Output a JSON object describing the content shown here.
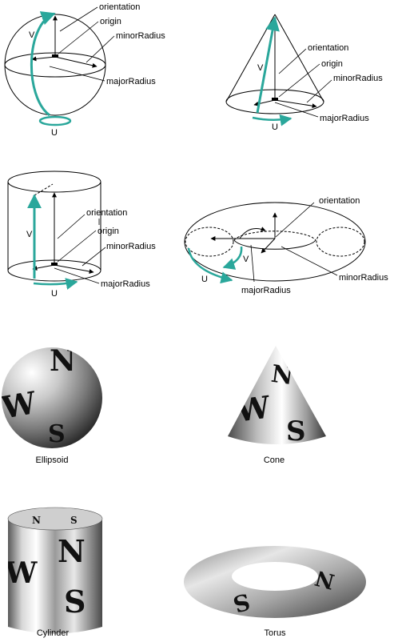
{
  "labels": {
    "orientation": "orientation",
    "origin": "origin",
    "minor_radius": "minorRadius",
    "major_radius": "majorRadius",
    "u": "U",
    "v": "V"
  },
  "captions": {
    "ellipsoid": "Ellipsoid",
    "cone": "Cone",
    "cylinder": "Cylinder",
    "torus": "Torus"
  },
  "glyphs": {
    "north": "N",
    "south": "S",
    "west": "W"
  },
  "colors": {
    "accent": "#2aa79b",
    "line": "#000000"
  }
}
